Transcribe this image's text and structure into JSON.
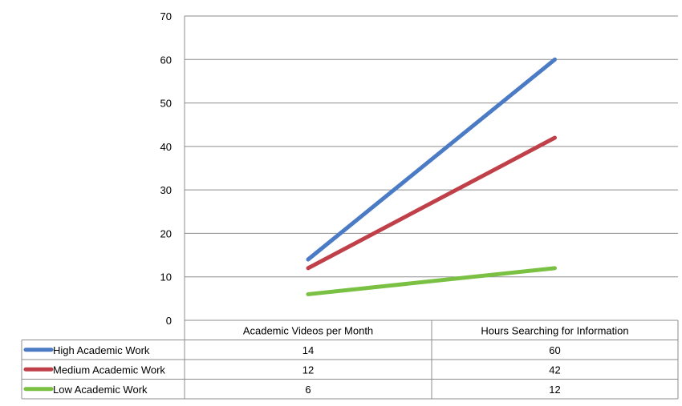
{
  "chart_data": {
    "type": "line",
    "categories": [
      "Academic Videos per Month",
      "Hours Searching for Information"
    ],
    "series": [
      {
        "name": "High Academic Work",
        "values": [
          14,
          60
        ],
        "color": "#4a7bc4"
      },
      {
        "name": "Medium Academic Work",
        "values": [
          12,
          42
        ],
        "color": "#c0404a"
      },
      {
        "name": "Low Academic Work",
        "values": [
          6,
          12
        ],
        "color": "#7ac143"
      }
    ],
    "ylim": [
      0,
      70
    ],
    "yticks": [
      0,
      10,
      20,
      30,
      40,
      50,
      60,
      70
    ],
    "grid": true,
    "legend": "data-table-below"
  }
}
